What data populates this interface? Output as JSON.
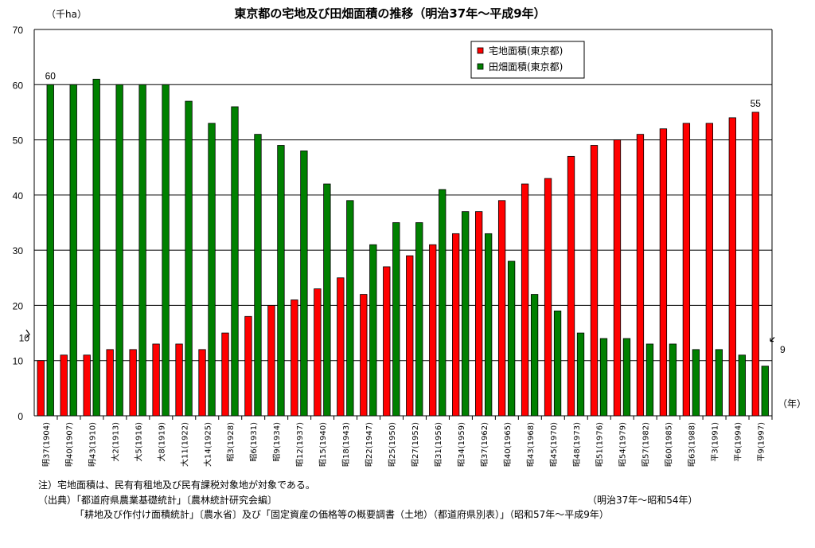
{
  "chart_data": {
    "type": "bar",
    "title": "東京都の宅地及び田畑面積の推移（明治37年～平成9年）",
    "y_unit": "（千ha）",
    "x_unit": "（年）",
    "ylim": [
      0,
      70
    ],
    "yticks": [
      "0",
      "10",
      "10",
      "20",
      "30",
      "40",
      "50",
      "60",
      "70"
    ],
    "grid": true,
    "legend_position": "top-right",
    "categories": [
      "明37(1904)",
      "明40(1907)",
      "明43(1910)",
      "大2(1913)",
      "大5(1916)",
      "大8(1919)",
      "大11(1922)",
      "大14(1925)",
      "昭3(1928)",
      "昭6(1931)",
      "昭9(1934)",
      "昭12(1937)",
      "昭15(1940)",
      "昭18(1943)",
      "昭22(1947)",
      "昭25(1950)",
      "昭27(1952)",
      "昭31(1956)",
      "昭34(1959)",
      "昭37(1962)",
      "昭40(1965)",
      "昭43(1968)",
      "昭45(1970)",
      "昭48(1973)",
      "昭51(1976)",
      "昭54(1979)",
      "昭57(1982)",
      "昭60(1985)",
      "昭63(1988)",
      "平3(1991)",
      "平6(1994)",
      "平9(1997)"
    ],
    "series": [
      {
        "name": "宅地面積(東京都)",
        "color": "#ff0000",
        "values": [
          10,
          11,
          11,
          12,
          12,
          13,
          13,
          12,
          15,
          18,
          20,
          21,
          23,
          25,
          22,
          27,
          29,
          31,
          33,
          37,
          39,
          42,
          43,
          47,
          49,
          50,
          51,
          52,
          53,
          53,
          54,
          55
        ]
      },
      {
        "name": "田畑面積(東京都)",
        "color": "#008000",
        "values": [
          60,
          60,
          61,
          60,
          60,
          60,
          57,
          53,
          56,
          51,
          49,
          48,
          42,
          39,
          31,
          35,
          35,
          41,
          37,
          33,
          28,
          22,
          19,
          15,
          14,
          14,
          13,
          13,
          12,
          12,
          11,
          9
        ]
      }
    ],
    "data_labels": [
      {
        "series": 1,
        "index": 0,
        "text": "60"
      },
      {
        "series": 0,
        "index": 31,
        "text": "55"
      },
      {
        "series": 1,
        "index": 31,
        "text": "9"
      }
    ]
  },
  "notes": {
    "line1": "注）宅地面積は、民有有租地及び民有課税対象地が対象である。",
    "line2": "（出典）「都道府県農業基礎統計」〔農林統計研究会編〕",
    "line2_period": "（明治37年～昭和54年）",
    "line3": "「耕地及び作付け面積統計」〔農水省〕及び「固定資産の価格等の概要調書（土地）（都道府県別表）」（昭和57年～平成9年）"
  }
}
